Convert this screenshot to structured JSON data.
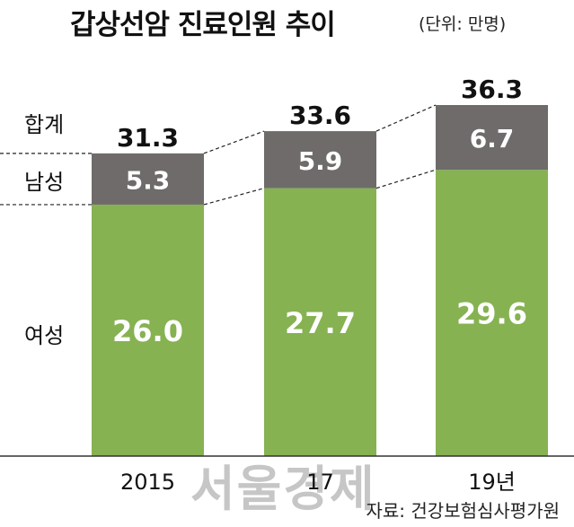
{
  "title": "갑상선암 진료인원 추이",
  "unit": "(단위: 만명)",
  "row_labels": {
    "total": "합계",
    "male": "남성",
    "female": "여성"
  },
  "source": "자료: 건강보험심사평가원",
  "watermark": "서울경제",
  "colors": {
    "female": "#86b252",
    "male": "#6e6b6a",
    "label": "#ffffff",
    "total_text": "#111111",
    "axis": "#333333",
    "dash": "#222222"
  },
  "chart_data": {
    "type": "bar",
    "stacked": true,
    "categories": [
      "2015",
      "17",
      "19년"
    ],
    "series": [
      {
        "name": "여성",
        "values": [
          26.0,
          27.7,
          29.6
        ]
      },
      {
        "name": "남성",
        "values": [
          5.3,
          5.9,
          6.7
        ]
      }
    ],
    "totals": [
      31.3,
      33.6,
      36.3
    ],
    "total_label": "합계",
    "value_labels": {
      "female": [
        "26.0",
        "27.7",
        "29.6"
      ],
      "male": [
        "5.3",
        "5.9",
        "6.7"
      ],
      "total": [
        "31.3",
        "33.6",
        "36.3"
      ]
    },
    "ylim": [
      0,
      36.3
    ]
  }
}
